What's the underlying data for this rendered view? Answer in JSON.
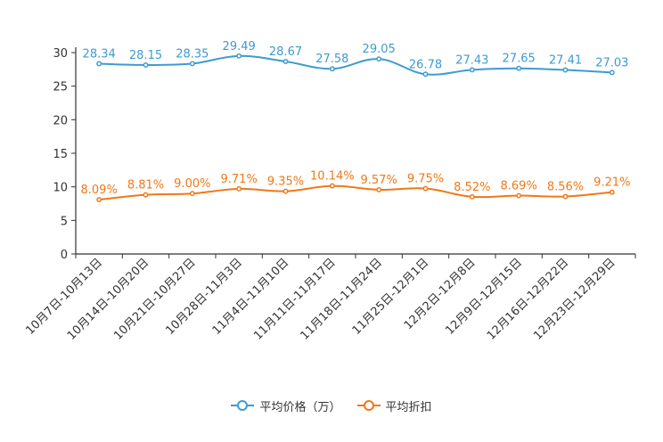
{
  "chart_data": {
    "type": "line",
    "categories": [
      "10月7日-10月13日",
      "10月14日-10月20日",
      "10月21日-10月27日",
      "10月28日-11月3日",
      "11月4日-11月10日",
      "11月11日-11月17日",
      "11月18日-11月24日",
      "11月25日-12月1日",
      "12月2日-12月8日",
      "12月9日-12月15日",
      "12月16日-12月22日",
      "12月23日-12月29日"
    ],
    "ylim": [
      0,
      30
    ],
    "yticks": [
      0,
      5,
      10,
      15,
      20,
      25,
      30
    ],
    "series": [
      {
        "name": "平均价格（万）",
        "color": "#3d9bd1",
        "values": [
          28.34,
          28.15,
          28.35,
          29.49,
          28.67,
          27.58,
          29.05,
          26.78,
          27.43,
          27.65,
          27.41,
          27.03
        ],
        "labels": [
          "28.34",
          "28.15",
          "28.35",
          "29.49",
          "28.67",
          "27.58",
          "29.05",
          "26.78",
          "27.43",
          "27.65",
          "27.41",
          "27.03"
        ]
      },
      {
        "name": "平均折扣",
        "color": "#f07818",
        "values": [
          8.09,
          8.81,
          9.0,
          9.71,
          9.35,
          10.14,
          9.57,
          9.75,
          8.52,
          8.69,
          8.56,
          9.21
        ],
        "labels": [
          "8.09%",
          "8.81%",
          "9.00%",
          "9.71%",
          "9.35%",
          "10.14%",
          "9.57%",
          "9.75%",
          "8.52%",
          "8.69%",
          "8.56%",
          "9.21%"
        ]
      }
    ]
  }
}
